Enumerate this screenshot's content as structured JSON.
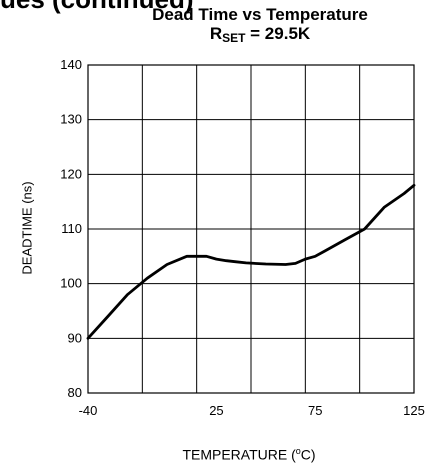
{
  "header": {
    "partial_text": "ues (continued)"
  },
  "chart_data": {
    "type": "line",
    "title": "Dead Time vs Temperature",
    "subtitle_prefix": "R",
    "subtitle_sub": "SET",
    "subtitle_suffix": " = 29.5K",
    "xlabel_prefix": "TEMPERATURE (",
    "xlabel_sup": "o",
    "xlabel_suffix": "C)",
    "ylabel": "DEADTIME (ns)",
    "xlim": [
      -40,
      125
    ],
    "ylim": [
      80,
      140
    ],
    "x_ticks": [
      -40,
      25,
      75,
      125
    ],
    "y_ticks": [
      80,
      90,
      100,
      110,
      120,
      130,
      140
    ],
    "x_grid_lines": 6,
    "grid": true,
    "series": [
      {
        "color": "#000000",
        "x": [
          -40,
          -30,
          -20,
          -10,
          0,
          10,
          20,
          25,
          30,
          35,
          40,
          50,
          60,
          65,
          70,
          75,
          80,
          90,
          100,
          110,
          120,
          125
        ],
        "y": [
          90,
          94,
          98,
          101,
          103.5,
          105,
          105,
          104.5,
          104.2,
          104,
          103.8,
          103.6,
          103.5,
          103.7,
          104.5,
          105,
          106,
          108,
          110,
          114,
          116.5,
          118
        ]
      }
    ]
  }
}
